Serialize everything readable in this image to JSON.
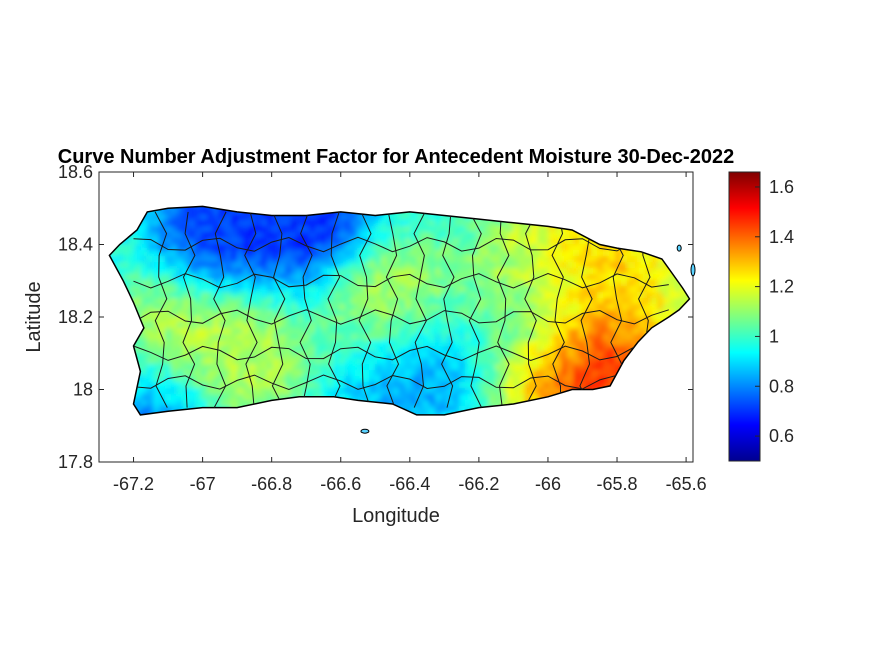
{
  "chart_data": {
    "type": "heatmap",
    "title": "Curve Number Adjustment Factor for Antecedent Moisture 30-Dec-2022",
    "xlabel": "Longitude",
    "ylabel": "Latitude",
    "xlim": [
      -67.3,
      -65.58
    ],
    "ylim": [
      17.8,
      18.6
    ],
    "x_ticks": [
      -67.2,
      -67,
      -66.8,
      -66.6,
      -66.4,
      -66.2,
      -66,
      -65.8,
      -65.6
    ],
    "x_tick_labels": [
      "-67.2",
      "-67",
      "-66.8",
      "-66.6",
      "-66.4",
      "-66.2",
      "-66",
      "-65.8",
      "-65.6"
    ],
    "y_ticks": [
      17.8,
      18,
      18.2,
      18.4,
      18.6
    ],
    "y_tick_labels": [
      "17.8",
      "18",
      "18.2",
      "18.4",
      "18.6"
    ],
    "colorbar": {
      "colormap": "jet",
      "range": [
        0.5,
        1.66
      ],
      "ticks": [
        0.6,
        0.8,
        1,
        1.2,
        1.4,
        1.6
      ],
      "tick_labels": [
        "0.6",
        "0.8",
        "1",
        "1.2",
        "1.4",
        "1.6"
      ]
    },
    "grid": false,
    "region": "Puerto Rico (municipality boundaries)",
    "field_pattern": [
      {
        "lon": -66.95,
        "lat": 18.47,
        "value": 0.62
      },
      {
        "lon": -66.7,
        "lat": 18.48,
        "value": 0.6
      },
      {
        "lon": -67.15,
        "lat": 17.96,
        "value": 0.68
      },
      {
        "lon": -66.42,
        "lat": 18.05,
        "value": 0.78
      },
      {
        "lon": -66.02,
        "lat": 18.18,
        "value": 0.8
      },
      {
        "lon": -67.1,
        "lat": 18.12,
        "value": 1.22
      },
      {
        "lon": -66.9,
        "lat": 18.08,
        "value": 1.2
      },
      {
        "lon": -66.48,
        "lat": 18.25,
        "value": 1.2
      },
      {
        "lon": -66.05,
        "lat": 18.3,
        "value": 1.25
      },
      {
        "lon": -65.82,
        "lat": 18.33,
        "value": 1.32
      },
      {
        "lon": -65.88,
        "lat": 18.4,
        "value": 1.35
      },
      {
        "lon": -65.9,
        "lat": 18.12,
        "value": 1.55
      },
      {
        "lon": -65.85,
        "lat": 18.05,
        "value": 1.62
      },
      {
        "lon": -65.95,
        "lat": 18.07,
        "value": 1.5
      },
      {
        "lon": -65.7,
        "lat": 18.25,
        "value": 1.22
      }
    ],
    "base_value": 0.97
  }
}
